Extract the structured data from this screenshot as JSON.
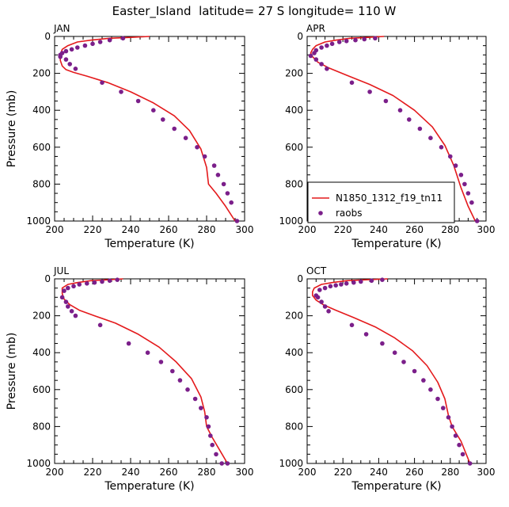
{
  "page_title": "Easter_Island  latitude= 27 S longitude= 110 W",
  "legend": {
    "line_label": "N1850_1312_f19_tn11",
    "dot_label": "raobs"
  },
  "colors": {
    "model_line": "#e41a1c",
    "raobs_dots": "#7b1f8a",
    "axes": "#000000"
  },
  "chart_data": [
    {
      "type": "line",
      "title": "JAN",
      "xlabel": "Temperature (K)",
      "ylabel": "Pressure (mb)",
      "xlim": [
        200,
        300
      ],
      "ylim": [
        1000,
        0
      ],
      "xticks": [
        "200",
        "220",
        "240",
        "260",
        "280",
        "300"
      ],
      "yticks": [
        "0",
        "200",
        "400",
        "600",
        "800",
        "1000"
      ],
      "series": [
        {
          "name": "N1850_1312_f19_tn11",
          "kind": "line",
          "x": [
            250,
            240,
            229,
            219,
            212,
            207,
            204,
            203,
            203,
            204,
            206,
            210,
            217,
            228,
            240,
            252,
            263,
            271,
            277,
            280,
            281,
            285,
            290,
            295
          ],
          "y": [
            0,
            5,
            10,
            20,
            30,
            50,
            70,
            100,
            130,
            160,
            180,
            195,
            215,
            250,
            300,
            360,
            430,
            510,
            610,
            710,
            800,
            850,
            920,
            1000
          ]
        },
        {
          "name": "raobs",
          "kind": "scatter",
          "x": [
            236,
            229,
            224,
            220,
            216,
            212,
            209,
            206,
            204,
            203,
            203,
            206,
            208,
            211,
            225,
            235,
            244,
            252,
            257,
            263,
            269,
            275,
            279,
            284,
            286,
            289,
            291,
            293,
            296
          ],
          "y": [
            10,
            20,
            30,
            40,
            50,
            60,
            70,
            80,
            90,
            100,
            110,
            125,
            150,
            175,
            250,
            300,
            350,
            400,
            450,
            500,
            550,
            600,
            650,
            700,
            750,
            800,
            850,
            900,
            1000
          ]
        }
      ]
    },
    {
      "type": "line",
      "title": "APR",
      "xlabel": "Temperature (K)",
      "ylabel": "",
      "xlim": [
        200,
        300
      ],
      "ylim": [
        1000,
        0
      ],
      "xticks": [
        "200",
        "220",
        "240",
        "260",
        "280",
        "300"
      ],
      "yticks": [
        "0",
        "200",
        "400",
        "600",
        "800",
        "1000"
      ],
      "series": [
        {
          "name": "N1850_1312_f19_tn11",
          "kind": "line",
          "x": [
            243,
            234,
            224,
            216,
            210,
            205,
            203,
            202,
            203,
            206,
            212,
            222,
            235,
            248,
            260,
            270,
            277,
            282,
            286,
            290,
            294
          ],
          "y": [
            0,
            5,
            10,
            20,
            30,
            50,
            70,
            90,
            110,
            140,
            170,
            210,
            260,
            320,
            400,
            490,
            590,
            700,
            820,
            920,
            1000
          ]
        },
        {
          "name": "raobs",
          "kind": "scatter",
          "x": [
            238,
            232,
            227,
            222,
            218,
            214,
            211,
            208,
            205,
            204,
            202,
            205,
            208,
            211,
            225,
            235,
            244,
            252,
            257,
            263,
            269,
            275,
            280,
            283,
            286,
            288,
            290,
            292,
            295
          ],
          "y": [
            10,
            15,
            20,
            25,
            30,
            40,
            50,
            60,
            75,
            90,
            105,
            125,
            150,
            175,
            250,
            300,
            350,
            400,
            450,
            500,
            550,
            600,
            650,
            700,
            750,
            800,
            850,
            900,
            1000
          ]
        }
      ]
    },
    {
      "type": "line",
      "title": "JUL",
      "xlabel": "Temperature (K)",
      "ylabel": "Pressure (mb)",
      "xlim": [
        200,
        300
      ],
      "ylim": [
        1000,
        0
      ],
      "xticks": [
        "200",
        "220",
        "240",
        "260",
        "280",
        "300"
      ],
      "yticks": [
        "0",
        "200",
        "400",
        "600",
        "800",
        "1000"
      ],
      "series": [
        {
          "name": "N1850_1312_f19_tn11",
          "kind": "line",
          "x": [
            236,
            228,
            219,
            212,
            207,
            204,
            204,
            205,
            208,
            213,
            221,
            232,
            244,
            255,
            264,
            272,
            277,
            279,
            280,
            283,
            287,
            291
          ],
          "y": [
            0,
            5,
            10,
            20,
            30,
            50,
            80,
            110,
            140,
            170,
            200,
            240,
            300,
            370,
            450,
            540,
            640,
            720,
            800,
            860,
            930,
            1000
          ]
        },
        {
          "name": "raobs",
          "kind": "scatter",
          "x": [
            233,
            229,
            225,
            221,
            217,
            213,
            210,
            207,
            205,
            204,
            206,
            207,
            209,
            211,
            224,
            239,
            249,
            256,
            262,
            266,
            270,
            274,
            277,
            280,
            281,
            282,
            283,
            285,
            288,
            291
          ],
          "y": [
            5,
            10,
            15,
            20,
            25,
            30,
            40,
            50,
            65,
            100,
            125,
            150,
            175,
            200,
            250,
            350,
            400,
            450,
            500,
            550,
            600,
            650,
            700,
            750,
            800,
            850,
            900,
            950,
            1000,
            1000
          ]
        }
      ]
    },
    {
      "type": "line",
      "title": "OCT",
      "xlabel": "Temperature (K)",
      "ylabel": "",
      "xlim": [
        200,
        300
      ],
      "ylim": [
        1000,
        0
      ],
      "xticks": [
        "200",
        "220",
        "240",
        "260",
        "280",
        "300"
      ],
      "yticks": [
        "0",
        "200",
        "400",
        "600",
        "800",
        "1000"
      ],
      "series": [
        {
          "name": "N1850_1312_f19_tn11",
          "kind": "line",
          "x": [
            245,
            233,
            222,
            214,
            208,
            204,
            203,
            203,
            205,
            209,
            216,
            226,
            238,
            249,
            259,
            267,
            273,
            277,
            279,
            281,
            286,
            291
          ],
          "y": [
            0,
            5,
            10,
            20,
            30,
            50,
            70,
            90,
            115,
            140,
            170,
            210,
            260,
            320,
            390,
            470,
            560,
            650,
            740,
            800,
            880,
            1000
          ]
        },
        {
          "name": "raobs",
          "kind": "scatter",
          "x": [
            242,
            236,
            230,
            226,
            222,
            219,
            216,
            213,
            210,
            207,
            205,
            206,
            208,
            210,
            212,
            225,
            233,
            242,
            249,
            254,
            260,
            265,
            269,
            273,
            276,
            279,
            281,
            283,
            285,
            287,
            291
          ],
          "y": [
            5,
            10,
            15,
            20,
            25,
            30,
            35,
            40,
            50,
            60,
            90,
            100,
            125,
            150,
            175,
            250,
            300,
            350,
            400,
            450,
            500,
            550,
            600,
            650,
            700,
            750,
            800,
            850,
            900,
            950,
            1000
          ]
        }
      ]
    }
  ]
}
